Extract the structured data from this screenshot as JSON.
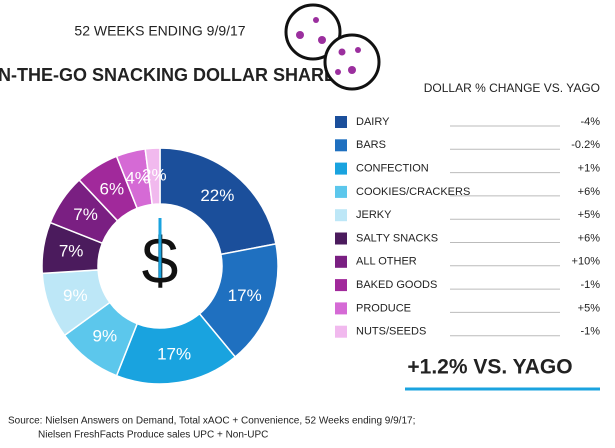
{
  "chart_data": {
    "type": "donut",
    "subtitle": "52 WEEKS ENDING 9/9/17",
    "title": "ON-THE-GO SNACKING DOLLAR SHARE",
    "center_symbol": "$",
    "categories": [
      "DAIRY",
      "BARS",
      "CONFECTION",
      "COOKIES/CRACKERS",
      "JERKY",
      "SALTY SNACKS",
      "ALL OTHER",
      "BAKED GOODS",
      "PRODUCE",
      "NUTS/SEEDS"
    ],
    "values": [
      22,
      17,
      17,
      9,
      9,
      7,
      7,
      6,
      4,
      2
    ],
    "value_labels": [
      "22%",
      "17%",
      "17%",
      "9%",
      "9%",
      "7%",
      "7%",
      "6%",
      "4%",
      "2%"
    ],
    "colors": [
      "#1b4f9b",
      "#1f70c0",
      "#19a3df",
      "#5cc7ec",
      "#bde7f7",
      "#4b1b5d",
      "#7a1f82",
      "#a1299b",
      "#d56ad5",
      "#f1b9ee"
    ],
    "change_header": "DOLLAR % CHANGE VS. YAGO",
    "changes": [
      "-4%",
      "-0.2%",
      "+1%",
      "+6%",
      "+5%",
      "+6%",
      "+10%",
      "-1%",
      "+5%",
      "-1%"
    ],
    "total_change": "+1.2% VS. YAGO",
    "source": [
      "Source: Nielsen Answers on Demand, Total xAOC + Convenience, 52 Weeks ending 9/9/17;",
      "Nielsen FreshFacts Produce sales UPC + Non-UPC"
    ]
  }
}
